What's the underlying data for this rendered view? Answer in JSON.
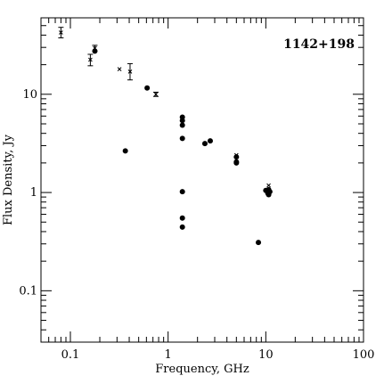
{
  "chart_data": {
    "type": "scatter",
    "title": "1142+198",
    "xlabel": "Frequency, GHz",
    "ylabel": "Flux Density, Jy",
    "xscale": "log",
    "yscale": "log",
    "xlim": [
      0.05,
      100
    ],
    "ylim": [
      0.03,
      60
    ],
    "x_ticks": [
      {
        "value": 0.1,
        "label": "0.1"
      },
      {
        "value": 1,
        "label": "1"
      },
      {
        "value": 10,
        "label": "10"
      },
      {
        "value": 100,
        "label": "100"
      }
    ],
    "y_ticks": [
      {
        "value": 0.1,
        "label": "0.1"
      },
      {
        "value": 1,
        "label": "1"
      },
      {
        "value": 10,
        "label": "10"
      }
    ],
    "series": [
      {
        "marker": "filled-circle",
        "points": [
          {
            "x": 0.178,
            "y": 27.5
          },
          {
            "x": 0.365,
            "y": 2.65
          },
          {
            "x": 0.61,
            "y": 11.6
          },
          {
            "x": 1.4,
            "y": 5.85
          },
          {
            "x": 1.4,
            "y": 5.4
          },
          {
            "x": 1.4,
            "y": 4.85
          },
          {
            "x": 1.4,
            "y": 3.55
          },
          {
            "x": 1.4,
            "y": 1.02
          },
          {
            "x": 1.4,
            "y": 0.55
          },
          {
            "x": 1.4,
            "y": 0.445
          },
          {
            "x": 2.38,
            "y": 3.15
          },
          {
            "x": 2.7,
            "y": 3.35
          },
          {
            "x": 5.0,
            "y": 2.3
          },
          {
            "x": 5.0,
            "y": 2.05
          },
          {
            "x": 5.0,
            "y": 2.0
          },
          {
            "x": 8.4,
            "y": 0.31
          },
          {
            "x": 10.0,
            "y": 1.05
          },
          {
            "x": 10.5,
            "y": 0.98
          },
          {
            "x": 10.7,
            "y": 0.95
          },
          {
            "x": 10.7,
            "y": 1.07
          },
          {
            "x": 11.0,
            "y": 1.02
          }
        ]
      },
      {
        "marker": "cross-with-errorbar",
        "points": [
          {
            "x": 0.08,
            "y": 42.5,
            "ylow": 37.5,
            "yhigh": 48.0
          },
          {
            "x": 0.16,
            "y": 22.5,
            "ylow": 19.5,
            "yhigh": 25.5
          },
          {
            "x": 0.178,
            "y": 29.5,
            "ylow": 27.5,
            "yhigh": 31.5
          },
          {
            "x": 0.318,
            "y": 18.0
          },
          {
            "x": 0.408,
            "y": 17.0,
            "ylow": 14.0,
            "yhigh": 20.5
          },
          {
            "x": 0.75,
            "y": 10.0,
            "ylow": 9.5,
            "yhigh": 10.5
          },
          {
            "x": 5.0,
            "y": 2.4
          },
          {
            "x": 10.7,
            "y": 1.18
          }
        ]
      }
    ],
    "grid": false,
    "legend": "none"
  }
}
